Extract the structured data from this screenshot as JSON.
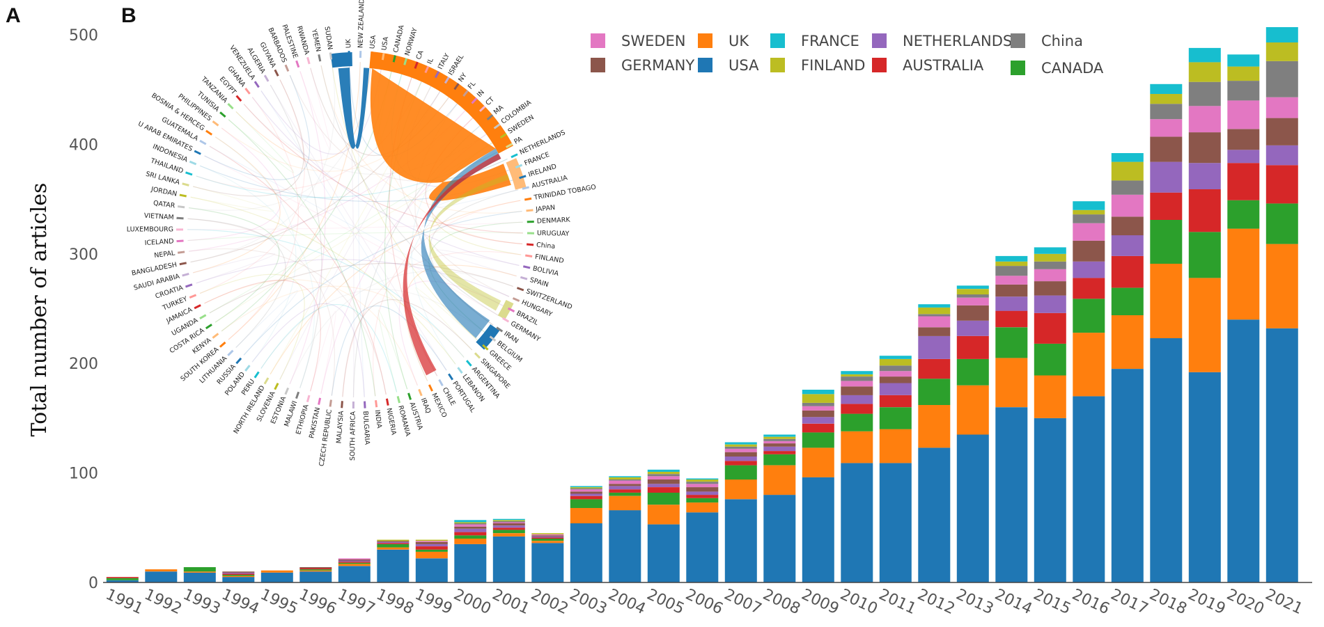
{
  "panels": {
    "a": "A",
    "b": "B"
  },
  "chart_data": [
    {
      "type": "bar",
      "stacked": true,
      "title": "",
      "xlabel": "",
      "ylabel": "Total number of articles",
      "ylim": [
        0,
        500
      ],
      "yticks": [
        0,
        100,
        200,
        300,
        400,
        500
      ],
      "categories": [
        "1991",
        "1992",
        "1993",
        "1994",
        "1995",
        "1996",
        "1997",
        "1998",
        "1999",
        "2000",
        "2001",
        "2002",
        "2003",
        "2004",
        "2005",
        "2006",
        "2007",
        "2008",
        "2009",
        "2010",
        "2011",
        "2012",
        "2013",
        "2014",
        "2015",
        "2016",
        "2017",
        "2018",
        "2019",
        "2020",
        "2021"
      ],
      "series": [
        {
          "name": "USA",
          "color": "#1f77b4",
          "values": [
            2,
            10,
            9,
            5,
            9,
            10,
            15,
            30,
            22,
            35,
            42,
            36,
            54,
            66,
            53,
            64,
            76,
            80,
            96,
            109,
            109,
            123,
            135,
            160,
            150,
            170,
            195,
            223,
            192,
            240,
            232
          ]
        },
        {
          "name": "UK",
          "color": "#ff7f0e",
          "values": [
            0,
            2,
            1,
            1,
            2,
            1,
            2,
            2,
            6,
            5,
            3,
            2,
            14,
            13,
            18,
            9,
            18,
            27,
            27,
            29,
            31,
            39,
            45,
            45,
            39,
            58,
            49,
            68,
            86,
            83,
            77
          ]
        },
        {
          "name": "CANADA",
          "color": "#2ca02c",
          "values": [
            2,
            0,
            4,
            1,
            0,
            1,
            1,
            3,
            2,
            3,
            3,
            2,
            8,
            3,
            11,
            4,
            13,
            10,
            14,
            16,
            20,
            24,
            24,
            28,
            29,
            31,
            25,
            40,
            42,
            26,
            37
          ]
        },
        {
          "name": "AUSTRALIA",
          "color": "#d62728",
          "values": [
            1,
            0,
            0,
            1,
            0,
            1,
            1,
            1,
            3,
            3,
            2,
            1,
            3,
            3,
            5,
            3,
            4,
            3,
            8,
            9,
            11,
            18,
            21,
            15,
            28,
            19,
            29,
            25,
            39,
            34,
            35
          ]
        },
        {
          "name": "NETHERLANDS",
          "color": "#9467bd",
          "values": [
            0,
            0,
            0,
            1,
            0,
            0,
            1,
            1,
            2,
            3,
            2,
            1,
            2,
            3,
            3,
            3,
            4,
            4,
            6,
            8,
            11,
            21,
            14,
            13,
            16,
            15,
            19,
            28,
            24,
            12,
            18
          ]
        },
        {
          "name": "GERMANY",
          "color": "#8c564b",
          "values": [
            0,
            0,
            0,
            1,
            0,
            1,
            1,
            1,
            2,
            2,
            2,
            1,
            2,
            2,
            4,
            4,
            4,
            3,
            6,
            8,
            6,
            8,
            14,
            11,
            13,
            19,
            17,
            23,
            28,
            19,
            25
          ]
        },
        {
          "name": "SWEDEN",
          "color": "#e377c2",
          "values": [
            0,
            0,
            0,
            0,
            0,
            0,
            1,
            0,
            1,
            2,
            1,
            1,
            2,
            3,
            3,
            3,
            3,
            2,
            4,
            5,
            5,
            10,
            7,
            8,
            11,
            16,
            20,
            16,
            24,
            26,
            19
          ]
        },
        {
          "name": "China",
          "color": "#7f7f7f",
          "values": [
            0,
            0,
            0,
            0,
            0,
            0,
            0,
            0,
            0,
            1,
            1,
            0,
            1,
            1,
            2,
            2,
            2,
            2,
            3,
            4,
            5,
            2,
            3,
            9,
            7,
            8,
            13,
            14,
            22,
            18,
            33
          ]
        },
        {
          "name": "FINLAND",
          "color": "#bcbd22",
          "values": [
            0,
            0,
            0,
            0,
            0,
            0,
            0,
            1,
            1,
            1,
            1,
            1,
            1,
            2,
            2,
            2,
            2,
            2,
            8,
            2,
            6,
            6,
            5,
            4,
            7,
            4,
            17,
            9,
            18,
            13,
            17
          ]
        },
        {
          "name": "FRANCE",
          "color": "#17becf",
          "values": [
            0,
            0,
            0,
            0,
            0,
            0,
            0,
            0,
            0,
            2,
            1,
            0,
            1,
            1,
            2,
            1,
            2,
            2,
            4,
            3,
            3,
            3,
            3,
            5,
            6,
            8,
            8,
            9,
            13,
            11,
            14
          ]
        }
      ],
      "legend_position": "top-right"
    },
    {
      "type": "chord",
      "title": "",
      "labels": [
        "UK",
        "NEW ZEALAND",
        "USA",
        "USA",
        "CANADA",
        "NORWAY",
        "CA",
        "IL",
        "ITALY",
        "ISRAEL",
        "NY",
        "FL",
        "IN",
        "CT",
        "MA",
        "COLOMBIA",
        "SWEDEN",
        "PA",
        "NETHERLANDS",
        "FRANCE",
        "IRELAND",
        "AUSTRALIA",
        "TRINIDAD TOBAGO",
        "JAPAN",
        "DENMARK",
        "URUGUAY",
        "China",
        "FINLAND",
        "BOLIVIA",
        "SPAIN",
        "SWITZERLAND",
        "HUNGARY",
        "BRAZIL",
        "GERMANY",
        "IRAN",
        "BELGIUM",
        "GREECE",
        "SINGAPORE",
        "ARGENTINA",
        "LEBANON",
        "PORTUGAL",
        "CHILE",
        "MEXICO",
        "IRAQ",
        "AUSTRIA",
        "ROMANIA",
        "NIGERIA",
        "INDIA",
        "BULGARIA",
        "SOUTH AFRICA",
        "MALAYSIA",
        "CZECH REPUBLIC",
        "PAKISTAN",
        "ETHIOPIA",
        "MALAWI",
        "ESTONIA",
        "SLOVENIA",
        "NORTH IRELAND",
        "PERU",
        "POLAND",
        "RUSSIA",
        "LITHUANIA",
        "SOUTH KOREA",
        "KENYA",
        "COSTA RICA",
        "UGANDA",
        "JAMAICA",
        "TURKEY",
        "CROATIA",
        "SAUDI ARABIA",
        "BANGLADESH",
        "NEPAL",
        "ICELAND",
        "LUXEMBOURG",
        "VIETNAM",
        "QATAR",
        "JORDAN",
        "SRI LANKA",
        "THAILAND",
        "INDONESIA",
        "U ARAB EMIRATES",
        "GUATEMALA",
        "BOSNIA & HERCEG",
        "PHILIPPINES",
        "TUNISIA",
        "TANZANIA",
        "EGYPT",
        "GHANA",
        "VENEZUELA",
        "ALGERIA",
        "GUYANA",
        "BARBADOS",
        "PALESTINE",
        "RWANDA",
        "YEMEN",
        "SUDAN"
      ],
      "colors": [
        "#1f77b4",
        "#aec7e8",
        "#ff7f0e",
        "#ffbb78",
        "#2ca02c",
        "#98df8a",
        "#d62728",
        "#ff9896",
        "#9467bd",
        "#c5b0d5",
        "#8c564b",
        "#c49c94",
        "#e377c2",
        "#f7b6d2",
        "#7f7f7f",
        "#c7c7c7",
        "#bcbd22",
        "#dbdb8d",
        "#17becf",
        "#9edae5"
      ]
    }
  ]
}
